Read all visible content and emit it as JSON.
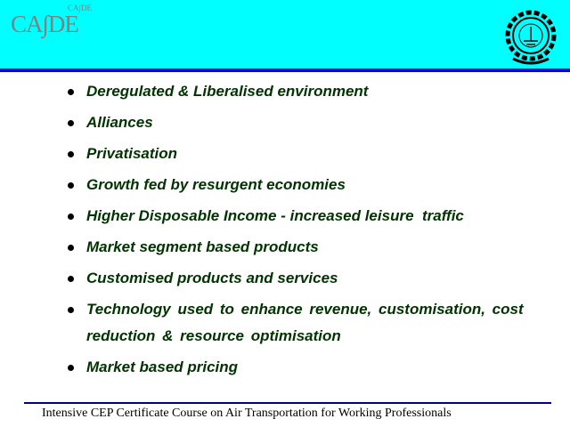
{
  "header": {
    "logo_text": "CA∫DE",
    "logo_small_text": "CA∫DE",
    "emblem": "iit-bombay-emblem",
    "background_color": "#00ffff",
    "bar_color": "#0000e0"
  },
  "bullets": [
    "Deregulated & Liberalised environment",
    "Alliances",
    "Privatisation",
    "Growth fed by resurgent economies",
    "Higher Disposable Income - increased leisure  traffic",
    "Market segment based products",
    "Customised products and services",
    "Technology used to enhance revenue, customisation, cost reduction & resource optimisation",
    "Market based pricing"
  ],
  "text_color": "#003300",
  "footer": {
    "text": "Intensive CEP Certificate Course on Air Transportation for Working Professionals"
  }
}
